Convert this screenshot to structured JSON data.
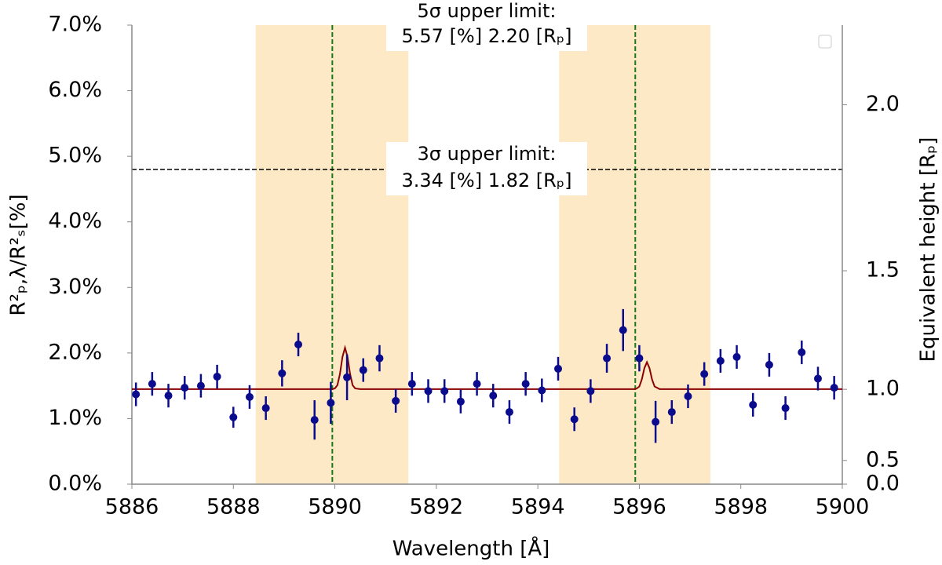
{
  "chart_data": {
    "type": "scatter",
    "x_label": "Wavelength [Å]",
    "y_label": "R²ₚ,λ/R²ₛ[%]",
    "y2_label": "Equivalent height [Rₚ]",
    "xlim": [
      5886,
      5900
    ],
    "xticks": [
      5886,
      5888,
      5890,
      5892,
      5894,
      5896,
      5898,
      5900
    ],
    "ylim": [
      0,
      7
    ],
    "yticks": [
      {
        "value": 0,
        "label": "0.0%"
      },
      {
        "value": 1,
        "label": "1.0%"
      },
      {
        "value": 2,
        "label": "2.0%"
      },
      {
        "value": 3,
        "label": "3.0%"
      },
      {
        "value": 4,
        "label": "4.0%"
      },
      {
        "value": 5,
        "label": "5.0%"
      },
      {
        "value": 6,
        "label": "6.0%"
      },
      {
        "value": 7,
        "label": "7.0%"
      }
    ],
    "y2scale": "sqrt",
    "y2lim": [
      0,
      2.2
    ],
    "y2ticks": [
      {
        "value": 0,
        "label": "0.0"
      },
      0.5,
      {
        "value": 1,
        "label": "1.0"
      },
      1.5,
      {
        "value": 2,
        "label": "2.0"
      }
    ],
    "spans": [
      [
        5888.44,
        5891.45
      ],
      [
        5894.42,
        5897.4
      ]
    ],
    "span_color": "#fde9c6",
    "vlines": [
      5889.95,
      5895.92
    ],
    "vline_color": "#1a7a1a",
    "hline": 4.8,
    "annotations": [
      {
        "lines": [
          "5σ upper limit:",
          "5.57 [%] 2.20 [Rₚ]"
        ]
      },
      {
        "lines": [
          "3σ upper limit:",
          "3.34 [%] 1.82 [Rₚ]"
        ]
      }
    ],
    "series": [
      {
        "color": "#0b0b8e",
        "x": [
          5886.08,
          5886.4,
          5886.72,
          5887.04,
          5887.36,
          5887.68,
          5888.0,
          5888.32,
          5888.64,
          5888.96,
          5889.28,
          5889.6,
          5889.92,
          5890.24,
          5890.56,
          5890.88,
          5891.2,
          5891.52,
          5891.84,
          5892.16,
          5892.48,
          5892.8,
          5893.12,
          5893.44,
          5893.76,
          5894.08,
          5894.4,
          5894.72,
          5895.04,
          5895.36,
          5895.68,
          5896.0,
          5896.32,
          5896.64,
          5896.96,
          5897.28,
          5897.6,
          5897.92,
          5898.24,
          5898.56,
          5898.88,
          5899.2,
          5899.52,
          5899.84
        ],
        "values": [
          1.37,
          1.53,
          1.35,
          1.47,
          1.5,
          1.64,
          1.02,
          1.33,
          1.16,
          1.69,
          2.13,
          0.98,
          1.24,
          1.63,
          1.74,
          1.92,
          1.27,
          1.53,
          1.42,
          1.42,
          1.26,
          1.53,
          1.35,
          1.1,
          1.53,
          1.43,
          1.76,
          0.99,
          1.42,
          1.92,
          2.35,
          1.92,
          0.95,
          1.1,
          1.34,
          1.68,
          1.88,
          1.94,
          1.21,
          1.82,
          1.16,
          2.01,
          1.61,
          1.47
        ],
        "errors": [
          0.18,
          0.18,
          0.18,
          0.18,
          0.18,
          0.18,
          0.16,
          0.18,
          0.18,
          0.2,
          0.18,
          0.3,
          0.32,
          0.35,
          0.18,
          0.2,
          0.18,
          0.18,
          0.18,
          0.18,
          0.18,
          0.18,
          0.18,
          0.18,
          0.18,
          0.18,
          0.18,
          0.18,
          0.18,
          0.22,
          0.32,
          0.2,
          0.32,
          0.18,
          0.18,
          0.18,
          0.18,
          0.18,
          0.18,
          0.18,
          0.18,
          0.18,
          0.18,
          0.18
        ]
      },
      {
        "color": "#8b0000",
        "x": [
          5886,
          5889.95,
          5890.0,
          5890.05,
          5890.1,
          5890.15,
          5890.2,
          5890.25,
          5890.3,
          5890.35,
          5890.4,
          5890.5,
          5895.9,
          5895.95,
          5896.0,
          5896.05,
          5896.1,
          5896.15,
          5896.2,
          5896.25,
          5896.3,
          5896.4,
          5900
        ],
        "values": [
          1.45,
          1.45,
          1.46,
          1.51,
          1.68,
          1.94,
          2.08,
          1.94,
          1.68,
          1.51,
          1.46,
          1.45,
          1.45,
          1.46,
          1.49,
          1.6,
          1.77,
          1.86,
          1.77,
          1.6,
          1.49,
          1.45,
          1.45
        ]
      }
    ]
  }
}
